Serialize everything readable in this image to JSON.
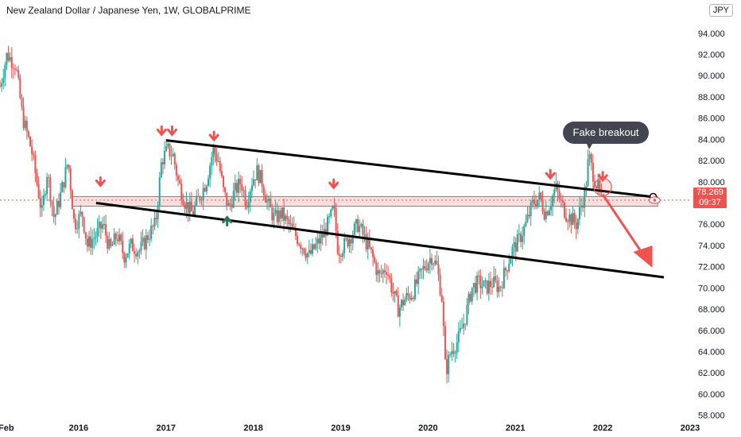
{
  "header": {
    "title": "New Zealand Dollar / Japanese Yen, 1W, GLOBALPRIME",
    "currency_label": "JPY"
  },
  "price_badge": {
    "price": "78.269",
    "countdown": "09:37"
  },
  "annotation": {
    "text": "Fake breakout"
  },
  "colors": {
    "up": "#26a69a",
    "down": "#ef5350",
    "trendline": "#000000",
    "zone": "#f7c5c5",
    "bubble": "#434651"
  },
  "chart_data": {
    "type": "candlestick",
    "title": "New Zealand Dollar / Japanese Yen, 1W, GLOBALPRIME",
    "ylim": [
      57,
      95
    ],
    "y_ticks": [
      "58.000",
      "60.000",
      "62.000",
      "64.000",
      "66.000",
      "68.000",
      "70.000",
      "72.000",
      "74.000",
      "76.000",
      "78.000",
      "80.000",
      "82.000",
      "84.000",
      "86.000",
      "88.000",
      "90.000",
      "92.000",
      "94.000"
    ],
    "x_ticks": [
      "Feb",
      "2016",
      "2017",
      "2018",
      "2019",
      "2020",
      "2021",
      "2022",
      "2023"
    ],
    "x_tick_years": [
      2015.1,
      2016.0,
      2017.0,
      2018.0,
      2019.0,
      2020.0,
      2021.0,
      2022.0,
      2023.0
    ],
    "series_path": [
      [
        2015.1,
        89
      ],
      [
        2015.18,
        92
      ],
      [
        2015.28,
        91
      ],
      [
        2015.36,
        86
      ],
      [
        2015.46,
        83
      ],
      [
        2015.58,
        77
      ],
      [
        2015.64,
        81
      ],
      [
        2015.72,
        76.5
      ],
      [
        2015.8,
        79
      ],
      [
        2015.88,
        82
      ],
      [
        2015.95,
        76
      ],
      [
        2016.04,
        77
      ],
      [
        2016.1,
        74
      ],
      [
        2016.2,
        75
      ],
      [
        2016.28,
        76
      ],
      [
        2016.36,
        73.5
      ],
      [
        2016.44,
        75
      ],
      [
        2016.52,
        73
      ],
      [
        2016.6,
        74
      ],
      [
        2016.7,
        73.5
      ],
      [
        2016.8,
        75
      ],
      [
        2016.88,
        76
      ],
      [
        2016.95,
        82
      ],
      [
        2017.02,
        83
      ],
      [
        2017.08,
        82.5
      ],
      [
        2017.14,
        80
      ],
      [
        2017.22,
        78
      ],
      [
        2017.3,
        77
      ],
      [
        2017.38,
        78.5
      ],
      [
        2017.46,
        80
      ],
      [
        2017.54,
        83
      ],
      [
        2017.6,
        82
      ],
      [
        2017.66,
        79
      ],
      [
        2017.72,
        77.5
      ],
      [
        2017.78,
        79
      ],
      [
        2017.86,
        80
      ],
      [
        2017.92,
        78
      ],
      [
        2017.98,
        80
      ],
      [
        2018.04,
        81
      ],
      [
        2018.1,
        80
      ],
      [
        2018.16,
        78
      ],
      [
        2018.24,
        76.5
      ],
      [
        2018.32,
        77
      ],
      [
        2018.4,
        76
      ],
      [
        2018.48,
        75
      ],
      [
        2018.56,
        74
      ],
      [
        2018.64,
        73
      ],
      [
        2018.72,
        74
      ],
      [
        2018.8,
        75
      ],
      [
        2018.88,
        76.5
      ],
      [
        2018.92,
        77.5
      ],
      [
        2018.97,
        73.5
      ],
      [
        2019.04,
        74
      ],
      [
        2019.12,
        75
      ],
      [
        2019.2,
        76
      ],
      [
        2019.28,
        74.5
      ],
      [
        2019.36,
        73
      ],
      [
        2019.44,
        71
      ],
      [
        2019.52,
        72
      ],
      [
        2019.6,
        69.5
      ],
      [
        2019.66,
        68
      ],
      [
        2019.74,
        69
      ],
      [
        2019.82,
        69.5
      ],
      [
        2019.9,
        71
      ],
      [
        2019.96,
        72
      ],
      [
        2020.04,
        73
      ],
      [
        2020.1,
        72
      ],
      [
        2020.16,
        69
      ],
      [
        2020.2,
        62
      ],
      [
        2020.26,
        64
      ],
      [
        2020.34,
        65
      ],
      [
        2020.42,
        67
      ],
      [
        2020.5,
        70
      ],
      [
        2020.58,
        70.5
      ],
      [
        2020.66,
        70
      ],
      [
        2020.74,
        70.5
      ],
      [
        2020.82,
        70
      ],
      [
        2020.9,
        72
      ],
      [
        2020.96,
        73.5
      ],
      [
        2021.04,
        74.5
      ],
      [
        2021.12,
        76
      ],
      [
        2021.2,
        78
      ],
      [
        2021.28,
        78.5
      ],
      [
        2021.34,
        77
      ],
      [
        2021.4,
        78
      ],
      [
        2021.46,
        79.5
      ],
      [
        2021.52,
        78
      ],
      [
        2021.58,
        77
      ],
      [
        2021.64,
        76.5
      ],
      [
        2021.7,
        76
      ],
      [
        2021.76,
        78
      ],
      [
        2021.8,
        79
      ],
      [
        2021.84,
        82.5
      ],
      [
        2021.88,
        81
      ],
      [
        2021.92,
        80
      ],
      [
        2021.96,
        79
      ],
      [
        2022.0,
        78.3
      ]
    ],
    "channel_upper": {
      "from": [
        2017.0,
        83.9
      ],
      "to": [
        2022.55,
        78.6
      ]
    },
    "channel_lower": {
      "from": [
        2016.2,
        78.0
      ],
      "to": [
        2022.7,
        71.0
      ]
    },
    "zone": {
      "x_from": 2015.93,
      "x_to": 2022.63,
      "y_from": 77.7,
      "y_to": 78.6
    },
    "current_price_line": 78.269,
    "down_markers": [
      [
        2016.25,
        79.5
      ],
      [
        2016.95,
        84.3
      ],
      [
        2017.07,
        84.3
      ],
      [
        2017.55,
        83.8
      ],
      [
        2018.92,
        79.3
      ],
      [
        2021.4,
        80.2
      ],
      [
        2022.0,
        80.0
      ]
    ],
    "up_markers": [
      [
        2017.7,
        76.8
      ]
    ]
  }
}
